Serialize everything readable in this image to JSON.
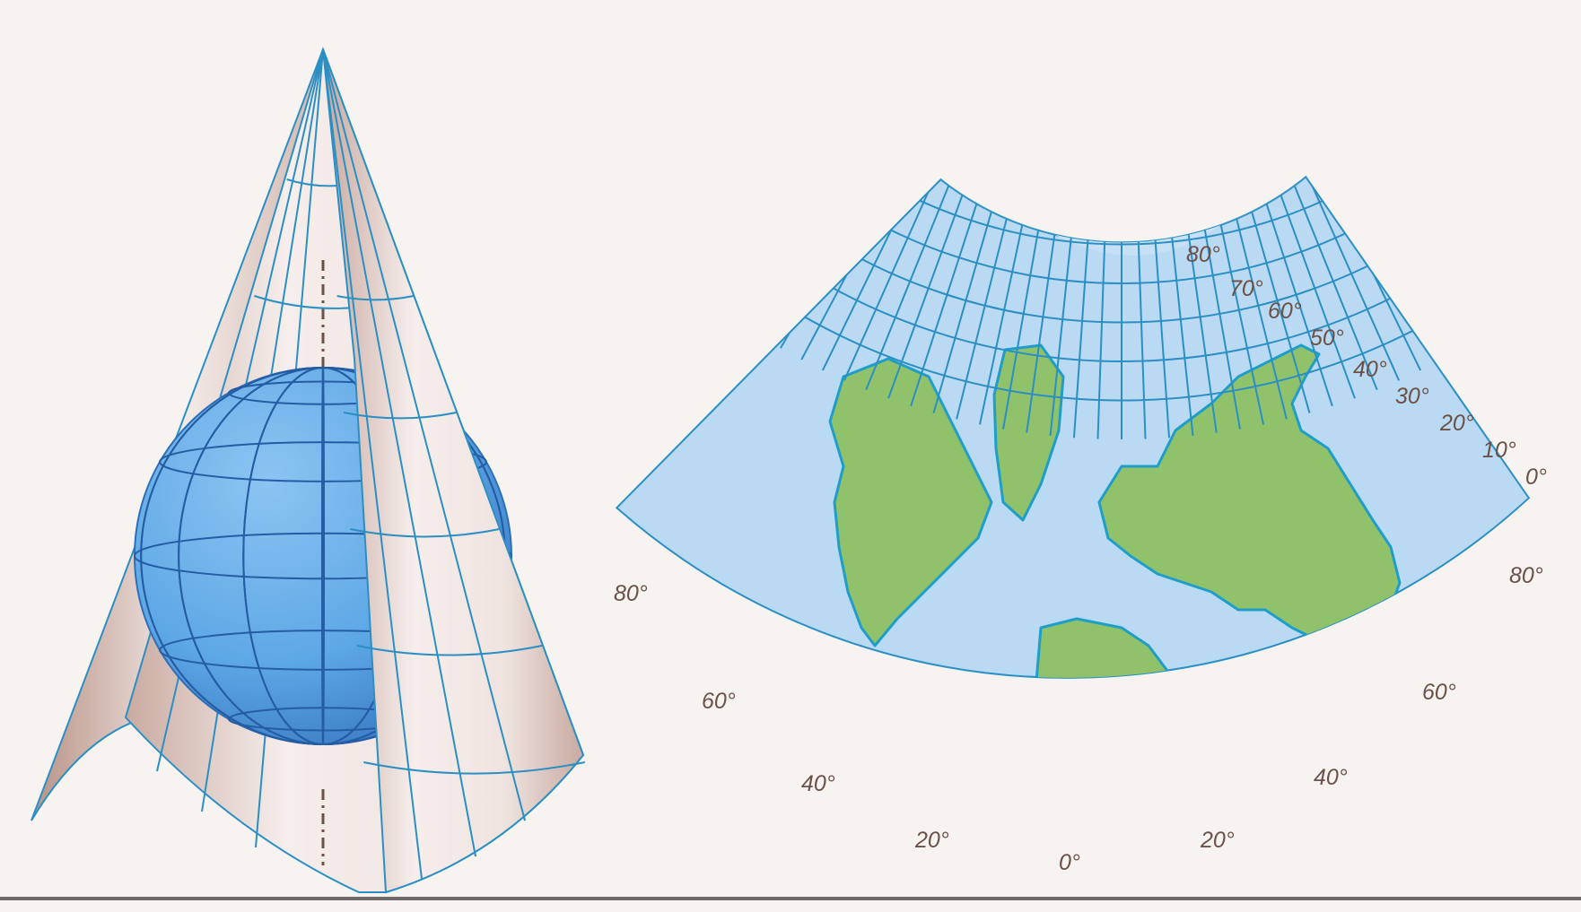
{
  "colors": {
    "page_background": "#f7f3f1",
    "paper": "#f4ecea",
    "paper_shade": "#c9aaa0",
    "ocean": "#bad9f2",
    "grid_line": "#2b8fc4",
    "land": "#8fc26a",
    "coast": "#1e9ec9",
    "globe": "#5ea8e6",
    "globe_dark": "#3f86cf",
    "label": "#6b5147"
  },
  "icons": {
    "cone": "cone-icon",
    "globe": "globe-icon",
    "map": "conic-projection-map"
  },
  "fan_labels": {
    "parallels_right": [
      "80°",
      "70°",
      "60°",
      "50°",
      "40°",
      "30°",
      "20°",
      "10°",
      "0°"
    ],
    "meridians": [
      "80°",
      "60°",
      "40°",
      "20°",
      "0°",
      "20°",
      "40°",
      "60°",
      "80°"
    ]
  }
}
